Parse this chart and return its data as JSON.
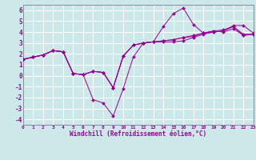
{
  "xlabel": "Windchill (Refroidissement éolien,°C)",
  "xlim": [
    0,
    23
  ],
  "ylim": [
    -4.5,
    6.5
  ],
  "yticks": [
    -4,
    -3,
    -2,
    -1,
    0,
    1,
    2,
    3,
    4,
    5,
    6
  ],
  "xticks": [
    0,
    1,
    2,
    3,
    4,
    5,
    6,
    7,
    8,
    9,
    10,
    11,
    12,
    13,
    14,
    15,
    16,
    17,
    18,
    19,
    20,
    21,
    22,
    23
  ],
  "bg_color": "#cce8e8",
  "grid_color": "#aad4d4",
  "line_color": "#990099",
  "spine_color": "#8888aa",
  "lines": [
    [
      1.5,
      1.7,
      1.9,
      2.3,
      2.2,
      0.2,
      0.1,
      -2.2,
      -2.5,
      -3.7,
      -1.2,
      1.7,
      3.0,
      3.1,
      4.5,
      5.7,
      6.2,
      4.7,
      3.9,
      4.0,
      4.1,
      4.6,
      4.6,
      3.9
    ],
    [
      1.5,
      1.7,
      1.9,
      2.3,
      2.2,
      0.2,
      0.1,
      0.4,
      0.3,
      -1.1,
      1.8,
      2.8,
      3.0,
      3.1,
      3.1,
      3.1,
      3.2,
      3.5,
      3.8,
      4.0,
      4.1,
      4.5,
      3.7,
      3.8
    ],
    [
      1.5,
      1.7,
      1.9,
      2.3,
      2.2,
      0.2,
      0.1,
      0.4,
      0.3,
      -1.1,
      1.8,
      2.8,
      3.0,
      3.1,
      3.2,
      3.3,
      3.5,
      3.6,
      3.9,
      4.1,
      4.2,
      4.5,
      3.8,
      3.8
    ],
    [
      1.5,
      1.7,
      1.9,
      2.3,
      2.2,
      0.2,
      0.1,
      0.4,
      0.3,
      -1.1,
      1.8,
      2.8,
      3.0,
      3.1,
      3.2,
      3.3,
      3.5,
      3.7,
      3.9,
      4.1,
      4.0,
      4.3,
      3.7,
      3.8
    ]
  ]
}
